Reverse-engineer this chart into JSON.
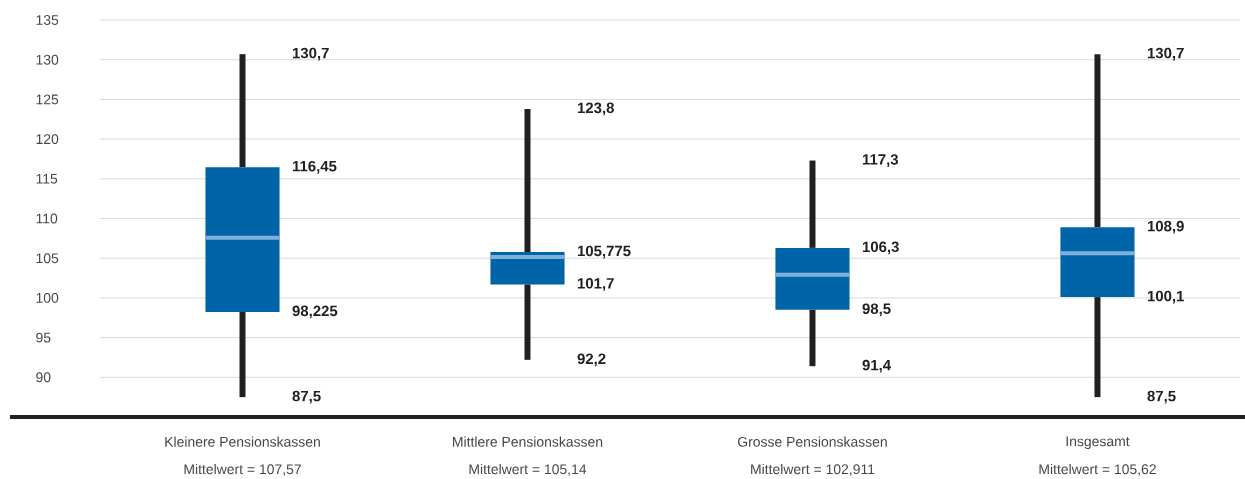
{
  "chart_data": {
    "type": "box",
    "categories": [
      "Kleinere Pensionskassen",
      "Mittlere Pensionskassen",
      "Grosse Pensionskassen",
      "Insgesamt"
    ],
    "boxes": [
      {
        "low": 87.5,
        "q1": 98.225,
        "q3": 116.45,
        "high": 130.7,
        "mean": 107.57
      },
      {
        "low": 92.2,
        "q1": 101.7,
        "q3": 105.775,
        "high": 123.8,
        "mean": 105.14
      },
      {
        "low": 91.4,
        "q1": 98.5,
        "q3": 106.3,
        "high": 117.3,
        "mean": 102.911
      },
      {
        "low": 87.5,
        "q1": 100.1,
        "q3": 108.9,
        "high": 130.7,
        "mean": 105.62
      }
    ],
    "color": "#0064a8",
    "ylim": [
      85,
      135
    ],
    "yticks": [
      90,
      95,
      100,
      105,
      110,
      115,
      120,
      125,
      130,
      135
    ],
    "grid": "y",
    "annotations": [
      "130,7",
      "116,45",
      "98,225",
      "87,5",
      "123,8",
      "105,775",
      "101,7",
      "92,2",
      "117,3",
      "106,3",
      "98,5",
      "91,4",
      "130,7",
      "108,9",
      "100,1",
      "87,5",
      "Mittelwert = 107,57",
      "Mittelwert = 105,14",
      "Mittelwert = 102,911",
      "Mittelwert = 105,62"
    ]
  }
}
